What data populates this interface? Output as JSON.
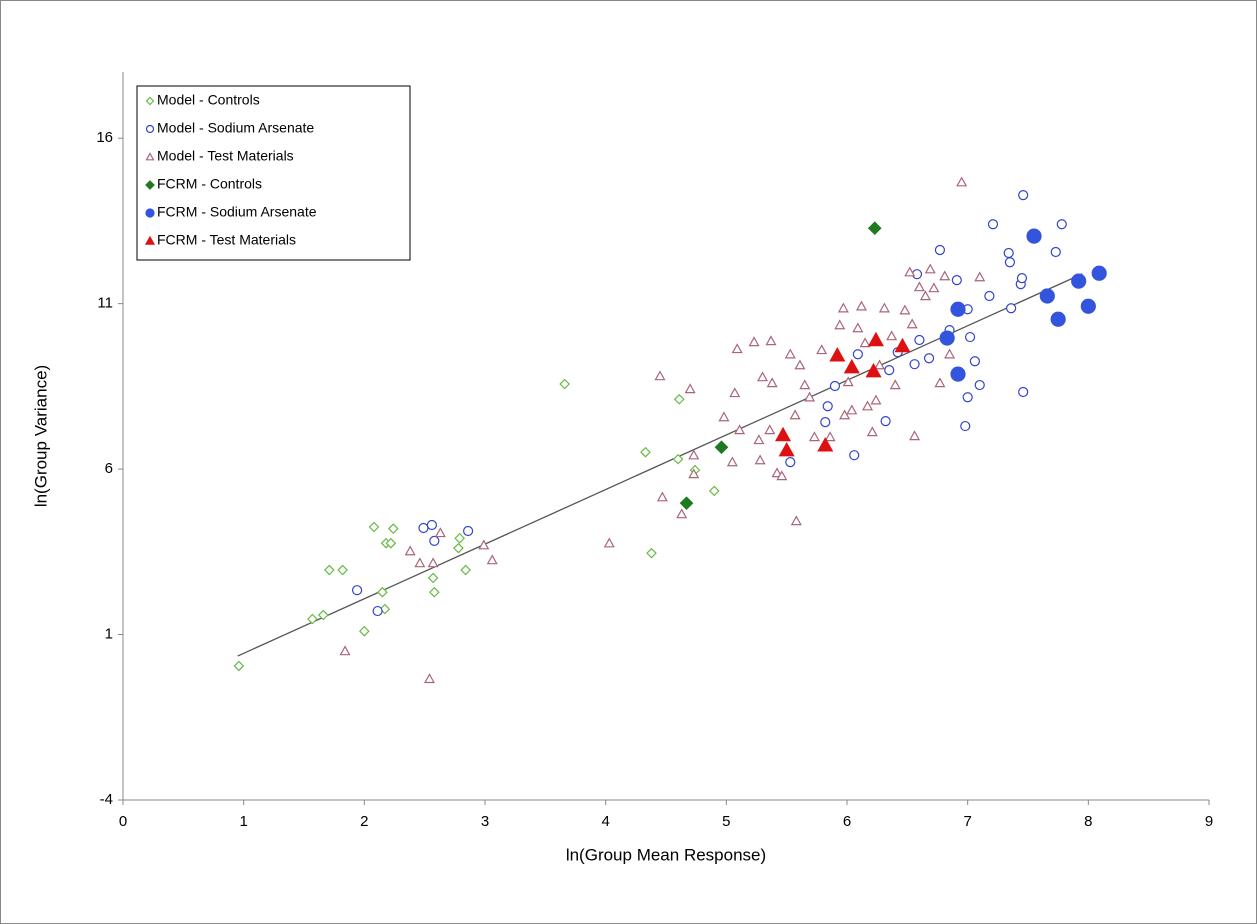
{
  "chart_data": {
    "type": "scatter",
    "xlabel": "ln(Group Mean Response)",
    "ylabel": "ln(Group Variance)",
    "xlim": [
      0,
      9
    ],
    "xticks": [
      0,
      1,
      2,
      3,
      4,
      5,
      6,
      7,
      8,
      9
    ],
    "ylim": [
      -4,
      18
    ],
    "yticks": [
      -4,
      1,
      6,
      11,
      16
    ],
    "legend": "upper left",
    "trendline": {
      "color": "#555555",
      "x": [
        0.95,
        7.95
      ],
      "y": [
        0.35,
        11.9
      ]
    },
    "series": [
      {
        "name": "Model - Controls",
        "color": "#66bb44",
        "marker": "diamond",
        "filled": false,
        "x": [
          0.96,
          1.57,
          1.66,
          1.71,
          1.82,
          2.0,
          2.08,
          2.15,
          2.17,
          2.18,
          2.22,
          2.24,
          2.57,
          2.58,
          2.79,
          2.78,
          2.84,
          3.66,
          4.33,
          4.38,
          4.6,
          4.61,
          4.74,
          4.9
        ],
        "y": [
          0.05,
          1.47,
          1.59,
          2.95,
          2.95,
          1.1,
          4.25,
          2.28,
          1.77,
          3.76,
          3.76,
          4.2,
          2.71,
          2.28,
          3.91,
          3.61,
          2.95,
          8.57,
          6.51,
          3.46,
          6.3,
          8.11,
          5.97,
          5.34
        ]
      },
      {
        "name": "Model - Sodium Arsenate",
        "color": "#3344cc",
        "marker": "circle",
        "filled": false,
        "x": [
          1.94,
          2.11,
          2.49,
          2.56,
          2.58,
          2.86,
          5.53,
          5.84,
          5.82,
          5.9,
          6.06,
          6.09,
          6.32,
          6.35,
          6.42,
          6.56,
          6.58,
          6.68,
          6.77,
          6.91,
          7.0,
          7.02,
          7.06,
          7.1,
          6.98,
          7.0,
          7.18,
          7.21,
          7.34,
          7.35,
          7.36,
          7.44,
          7.45,
          7.46,
          7.46,
          7.73,
          7.78,
          6.85,
          6.6
        ],
        "y": [
          2.34,
          1.71,
          4.22,
          4.31,
          3.83,
          4.13,
          6.21,
          7.9,
          7.42,
          8.51,
          6.42,
          9.47,
          7.45,
          8.99,
          9.53,
          9.17,
          11.89,
          9.35,
          12.62,
          11.71,
          10.83,
          9.99,
          9.26,
          8.54,
          7.3,
          8.17,
          11.23,
          13.4,
          12.53,
          12.25,
          10.86,
          11.59,
          11.77,
          8.33,
          14.28,
          12.56,
          13.4,
          10.2,
          9.9
        ]
      },
      {
        "name": "Model - Test Materials",
        "color": "#aa6677",
        "marker": "triangle",
        "filled": false,
        "x": [
          1.84,
          2.54,
          2.38,
          2.46,
          2.57,
          2.63,
          2.99,
          3.06,
          4.03,
          4.45,
          4.47,
          4.63,
          4.7,
          4.73,
          4.73,
          4.98,
          5.07,
          5.09,
          5.11,
          5.05,
          5.27,
          5.23,
          5.28,
          5.3,
          5.36,
          5.37,
          5.38,
          5.42,
          5.46,
          5.53,
          5.57,
          5.58,
          5.61,
          5.65,
          5.69,
          5.73,
          5.79,
          5.86,
          5.94,
          5.97,
          5.98,
          6.01,
          6.04,
          6.09,
          6.12,
          6.15,
          6.17,
          6.21,
          6.24,
          6.27,
          6.31,
          6.37,
          6.4,
          6.48,
          6.52,
          6.54,
          6.56,
          6.6,
          6.65,
          6.69,
          6.72,
          6.77,
          6.81,
          6.85,
          6.95,
          7.1
        ],
        "y": [
          0.5,
          -0.34,
          3.52,
          3.16,
          3.16,
          4.07,
          3.7,
          3.25,
          3.76,
          8.81,
          5.15,
          4.64,
          8.42,
          5.85,
          6.42,
          7.57,
          8.3,
          9.63,
          7.18,
          6.21,
          6.88,
          9.84,
          6.27,
          8.78,
          7.18,
          9.87,
          8.6,
          5.88,
          5.79,
          9.47,
          7.63,
          4.43,
          9.14,
          8.54,
          8.17,
          6.97,
          9.6,
          6.97,
          10.35,
          10.86,
          7.63,
          8.63,
          7.78,
          10.26,
          10.92,
          9.81,
          7.9,
          7.12,
          8.08,
          9.14,
          10.86,
          10.02,
          8.54,
          10.8,
          11.95,
          10.38,
          7.0,
          11.5,
          11.23,
          12.04,
          11.47,
          8.6,
          11.83,
          9.47,
          14.67,
          11.8
        ]
      },
      {
        "name": "FCRM - Controls",
        "color": "#1f7a1f",
        "marker": "diamond",
        "filled": true,
        "x": [
          4.67,
          4.96,
          6.23
        ],
        "y": [
          4.97,
          6.66,
          13.28
        ]
      },
      {
        "name": "FCRM - Sodium Arsenate",
        "color": "#3355dd",
        "marker": "circle",
        "filled": true,
        "x": [
          7.55,
          8.09,
          7.66,
          7.92,
          8.0,
          7.75,
          6.92,
          6.83,
          6.92
        ],
        "y": [
          13.04,
          11.92,
          11.23,
          11.68,
          10.92,
          10.53,
          10.83,
          9.96,
          8.87
        ]
      },
      {
        "name": "FCRM - Test Materials",
        "color": "#dd1111",
        "marker": "triangle",
        "filled": true,
        "x": [
          5.92,
          6.04,
          6.24,
          6.22,
          6.46,
          5.47,
          5.5,
          5.82
        ],
        "y": [
          9.44,
          9.08,
          9.9,
          8.96,
          9.72,
          7.03,
          6.57,
          6.72
        ]
      }
    ]
  }
}
